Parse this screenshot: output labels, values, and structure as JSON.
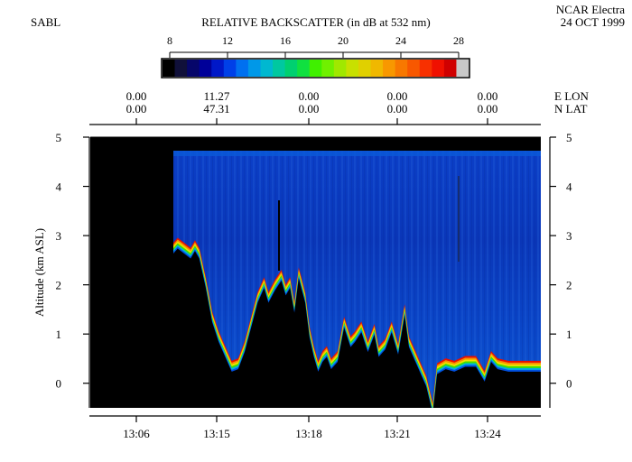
{
  "header": {
    "left_label": "SABL",
    "right_line1": "NCAR Electra",
    "right_line2": "24 OCT 1999"
  },
  "colorbar": {
    "title": "RELATIVE BACKSCATTER (in dB at 532 nm)",
    "ticks": [
      "8",
      "12",
      "16",
      "20",
      "24",
      "28"
    ],
    "min": 8,
    "max": 28,
    "colors": [
      "#000000",
      "#10103a",
      "#06066a",
      "#000099",
      "#0018c8",
      "#0040e8",
      "#0070f0",
      "#0098e8",
      "#00b8d0",
      "#00c8a0",
      "#00d070",
      "#10e040",
      "#40f000",
      "#70f000",
      "#a0e800",
      "#c8e000",
      "#e0d000",
      "#f0b800",
      "#f89800",
      "#f87800",
      "#f85800",
      "#f83000",
      "#f01000",
      "#d00000",
      "#c8c8c8"
    ]
  },
  "nav": {
    "labels": [
      "E LON",
      "N LAT"
    ],
    "ticks": [
      {
        "lon": "0.00",
        "lat": "0.00"
      },
      {
        "lon": "11.27",
        "lat": "47.31"
      },
      {
        "lon": "0.00",
        "lat": "0.00"
      },
      {
        "lon": "0.00",
        "lat": "0.00"
      },
      {
        "lon": "0.00",
        "lat": "0.00"
      }
    ]
  },
  "chart_data": {
    "type": "heatmap",
    "title": "RELATIVE BACKSCATTER (in dB at 532 nm)",
    "xlabel": "",
    "ylabel": "Altitude (km ASL)",
    "ylim": [
      -0.5,
      5
    ],
    "yticks": [
      "5",
      "4",
      "3",
      "2",
      "1",
      "0"
    ],
    "xticks": [
      "13:06",
      "13:15",
      "13:18",
      "13:21",
      "13:24"
    ],
    "value_range_db": [
      8,
      28
    ],
    "terrain_profile_km": [
      [
        0.0,
        2.8
      ],
      [
        0.02,
        2.9
      ],
      [
        0.05,
        2.8
      ],
      [
        0.08,
        2.7
      ],
      [
        0.1,
        2.85
      ],
      [
        0.12,
        2.7
      ],
      [
        0.15,
        2.1
      ],
      [
        0.18,
        1.4
      ],
      [
        0.21,
        1.0
      ],
      [
        0.25,
        0.6
      ],
      [
        0.27,
        0.4
      ],
      [
        0.3,
        0.45
      ],
      [
        0.33,
        0.8
      ],
      [
        0.36,
        1.3
      ],
      [
        0.39,
        1.8
      ],
      [
        0.42,
        2.1
      ],
      [
        0.44,
        1.8
      ],
      [
        0.47,
        2.05
      ],
      [
        0.5,
        2.25
      ],
      [
        0.52,
        1.95
      ],
      [
        0.54,
        2.1
      ],
      [
        0.56,
        1.6
      ],
      [
        0.58,
        2.3
      ],
      [
        0.61,
        1.8
      ],
      [
        0.63,
        1.1
      ],
      [
        0.65,
        0.7
      ],
      [
        0.67,
        0.4
      ],
      [
        0.69,
        0.6
      ],
      [
        0.71,
        0.7
      ],
      [
        0.73,
        0.45
      ],
      [
        0.76,
        0.6
      ],
      [
        0.79,
        1.3
      ],
      [
        0.82,
        0.9
      ],
      [
        0.84,
        1.0
      ],
      [
        0.87,
        1.2
      ],
      [
        0.9,
        0.8
      ],
      [
        0.93,
        1.15
      ],
      [
        0.95,
        0.7
      ],
      [
        0.98,
        0.85
      ],
      [
        1.01,
        1.2
      ],
      [
        1.04,
        0.75
      ],
      [
        1.07,
        1.55
      ],
      [
        1.09,
        0.9
      ],
      [
        1.12,
        0.6
      ],
      [
        1.15,
        0.3
      ],
      [
        1.17,
        0.1
      ],
      [
        1.2,
        -0.45
      ],
      [
        1.22,
        0.35
      ],
      [
        1.26,
        0.45
      ],
      [
        1.3,
        0.4
      ],
      [
        1.35,
        0.5
      ],
      [
        1.4,
        0.5
      ],
      [
        1.44,
        0.2
      ],
      [
        1.47,
        0.6
      ],
      [
        1.5,
        0.45
      ],
      [
        1.55,
        0.4
      ],
      [
        1.62,
        0.4
      ],
      [
        1.7,
        0.4
      ]
    ]
  }
}
